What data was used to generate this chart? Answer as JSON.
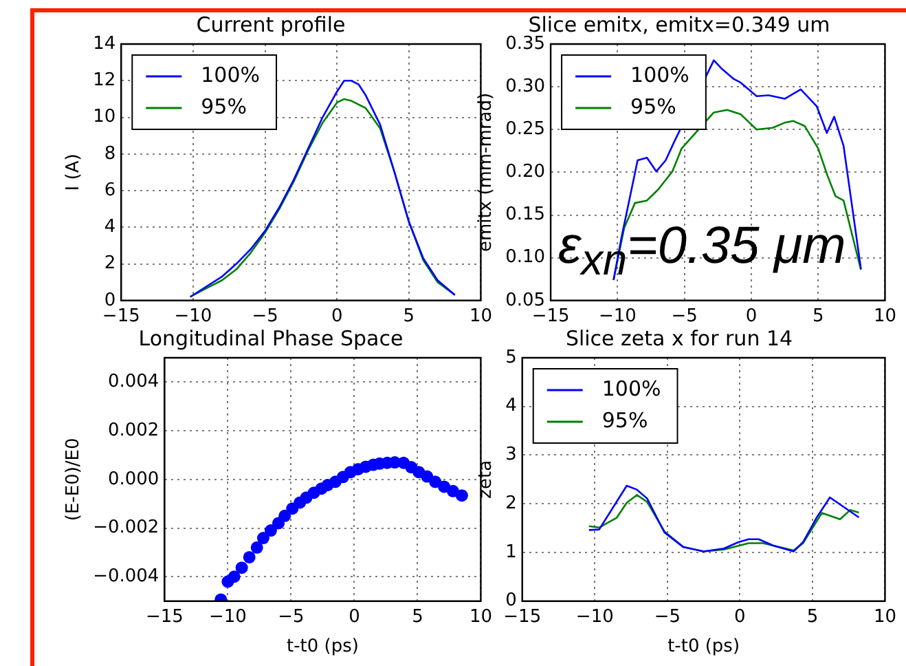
{
  "chart_data": [
    {
      "type": "line",
      "title": "Current profile",
      "ylabel": "I (A)",
      "legend": "top left",
      "grid": true,
      "xlim": [
        -15,
        10
      ],
      "xticks": [
        {
          "value": -15,
          "label": "−15"
        },
        {
          "value": -10,
          "label": "−10"
        },
        {
          "value": -5,
          "label": "−5"
        },
        0,
        5,
        10
      ],
      "ylim": [
        0,
        14
      ],
      "yticks": [
        0,
        2,
        4,
        6,
        8,
        10,
        12,
        14
      ],
      "series": [
        {
          "name": "100%",
          "color": "#0000ff",
          "x": [
            -10.2,
            -9,
            -8,
            -7,
            -6,
            -5,
            -4,
            -3,
            -2,
            -1,
            0,
            0.5,
            1,
            1.5,
            2,
            3,
            4,
            5,
            6,
            7,
            8.2
          ],
          "values": [
            0.2,
            0.8,
            1.3,
            2.0,
            2.8,
            3.8,
            5.1,
            6.6,
            8.3,
            10.0,
            11.4,
            12.0,
            12.0,
            11.8,
            11.2,
            9.6,
            7.0,
            4.3,
            2.3,
            1.1,
            0.3
          ]
        },
        {
          "name": "95%",
          "color": "#008000",
          "x": [
            -10.2,
            -9,
            -8,
            -7,
            -6,
            -5,
            -4,
            -3,
            -2,
            -1,
            0,
            0.5,
            1,
            2,
            3,
            4,
            5,
            6,
            7,
            8.2
          ],
          "values": [
            0.2,
            0.7,
            1.1,
            1.7,
            2.6,
            3.7,
            5.0,
            6.5,
            8.2,
            9.7,
            10.8,
            11.0,
            10.9,
            10.5,
            9.4,
            7.0,
            4.3,
            2.2,
            1.0,
            0.3
          ]
        }
      ]
    },
    {
      "type": "line",
      "title": "Slice emitx, emitx=0.349 um",
      "ylabel": "emitx (mm-mrad)",
      "legend": "top left",
      "grid": true,
      "annotations": [
        "ε$_{xn}$=0.35 μm"
      ],
      "xlim": [
        -15,
        10
      ],
      "xticks": [
        {
          "value": -15,
          "label": "−15"
        },
        {
          "value": -10,
          "label": "−10"
        },
        {
          "value": -5,
          "label": "−5"
        },
        0,
        5,
        10
      ],
      "ylim": [
        0.05,
        0.35
      ],
      "yticks": [
        {
          "value": 0.05,
          "label": "0.05"
        },
        {
          "value": 0.1,
          "label": "0.10"
        },
        {
          "value": 0.15,
          "label": "0.15"
        },
        {
          "value": 0.2,
          "label": "0.20"
        },
        {
          "value": 0.25,
          "label": "0.25"
        },
        {
          "value": 0.3,
          "label": "0.30"
        },
        {
          "value": 0.35,
          "label": "0.35"
        }
      ],
      "series": [
        {
          "name": "100%",
          "color": "#0000ff",
          "x": [
            -10.3,
            -9.7,
            -8.5,
            -7.8,
            -7.1,
            -6.4,
            -5.75,
            -2.8,
            -2.2,
            -1.3,
            -0.8,
            0.4,
            1.3,
            2.5,
            3.7,
            4.9,
            5.65,
            6.2,
            6.9,
            8.2
          ],
          "values": [
            0.074,
            0.124,
            0.214,
            0.217,
            0.201,
            0.214,
            0.236,
            0.331,
            0.321,
            0.309,
            0.305,
            0.289,
            0.29,
            0.286,
            0.297,
            0.277,
            0.246,
            0.265,
            0.231,
            0.087
          ]
        },
        {
          "name": "95%",
          "color": "#008000",
          "x": [
            -10.3,
            -9.5,
            -8.7,
            -7.8,
            -6.95,
            -5.9,
            -5.2,
            -2.8,
            -1.8,
            -0.8,
            0.4,
            1.6,
            2.5,
            3.15,
            4.0,
            5.0,
            5.7,
            6.3,
            6.9,
            8.2
          ],
          "values": [
            0.074,
            0.135,
            0.164,
            0.167,
            0.18,
            0.201,
            0.228,
            0.27,
            0.273,
            0.268,
            0.25,
            0.252,
            0.258,
            0.26,
            0.254,
            0.228,
            0.196,
            0.172,
            0.167,
            0.086
          ]
        }
      ]
    },
    {
      "type": "scatter",
      "title": "Longitudinal Phase Space",
      "xlabel": "t-t0 (ps)",
      "ylabel": "(E-E0)/E0",
      "grid": true,
      "marker": "circle",
      "xlim": [
        -15,
        10
      ],
      "xticks": [
        {
          "value": -15,
          "label": "−15"
        },
        {
          "value": -10,
          "label": "−10"
        },
        {
          "value": -5,
          "label": "−5"
        },
        0,
        5,
        10
      ],
      "ylim": [
        -0.005,
        0.005
      ],
      "yticks": [
        {
          "value": -0.004,
          "label": "−0.004"
        },
        {
          "value": -0.002,
          "label": "−0.002"
        },
        {
          "value": 0,
          "label": "0.000"
        },
        {
          "value": 0.002,
          "label": "0.002"
        },
        {
          "value": 0.004,
          "label": "0.004"
        }
      ],
      "series": [
        {
          "color": "#0000ff",
          "x": [
            -10.55,
            -10,
            -9.5,
            -8.9,
            -8.3,
            -7.7,
            -7.2,
            -6.6,
            -6,
            -5.5,
            -4.9,
            -4.3,
            -3.8,
            -3.2,
            -2.6,
            -2.1,
            -1.5,
            -0.9,
            -0.3,
            0.3,
            0.9,
            1.5,
            2,
            2.6,
            3.2,
            3.9,
            4.5,
            5.1,
            5.75,
            6.4,
            7.1,
            7.8,
            8.5
          ],
          "values": [
            -0.00494,
            -0.0042,
            -0.004,
            -0.00363,
            -0.0032,
            -0.0028,
            -0.00241,
            -0.0021,
            -0.0018,
            -0.0015,
            -0.0012,
            -0.00095,
            -0.00075,
            -0.00055,
            -0.00038,
            -0.00023,
            -0.0001,
            0.0001,
            0.0003,
            0.00042,
            0.00052,
            0.0006,
            0.00065,
            0.00068,
            0.0007,
            0.00068,
            0.0005,
            0.0003,
            0.00012,
            -0.0001,
            -0.0003,
            -0.00048,
            -0.00066
          ]
        }
      ]
    },
    {
      "type": "line",
      "title": "Slice zeta x for run 14",
      "xlabel": "t-t0 (ps)",
      "ylabel": "zeta",
      "legend": "top left",
      "grid": true,
      "xlim": [
        -15,
        10
      ],
      "xticks": [
        {
          "value": -15,
          "label": "−15"
        },
        {
          "value": -10,
          "label": "−10"
        },
        {
          "value": -5,
          "label": "−5"
        },
        0,
        5,
        10
      ],
      "ylim": [
        0,
        5
      ],
      "yticks": [
        0,
        1,
        2,
        3,
        4,
        5
      ],
      "series": [
        {
          "name": "100%",
          "color": "#0000ff",
          "x": [
            -10.4,
            -9.7,
            -7.8,
            -7.1,
            -6.4,
            -5.2,
            -3.9,
            -2.5,
            -1.1,
            -0.1,
            0.6,
            1.3,
            2.3,
            3.7,
            4.35,
            5.3,
            6.2,
            8.2
          ],
          "values": [
            1.46,
            1.47,
            2.37,
            2.29,
            2.11,
            1.41,
            1.11,
            1.02,
            1.08,
            1.21,
            1.27,
            1.27,
            1.14,
            1.02,
            1.21,
            1.72,
            2.13,
            1.72
          ]
        },
        {
          "name": "95%",
          "color": "#008000",
          "x": [
            -10.4,
            -9.7,
            -8.5,
            -7.8,
            -7.1,
            -6.4,
            -5.2,
            -3.9,
            -2.5,
            -1.1,
            0.6,
            1.6,
            3.7,
            4.35,
            5.65,
            6.9,
            7.6,
            8.2
          ],
          "values": [
            1.54,
            1.51,
            1.71,
            2.02,
            2.18,
            2.04,
            1.43,
            1.11,
            1.02,
            1.06,
            1.19,
            1.19,
            1.04,
            1.19,
            1.81,
            1.68,
            1.87,
            1.82
          ]
        }
      ]
    }
  ]
}
